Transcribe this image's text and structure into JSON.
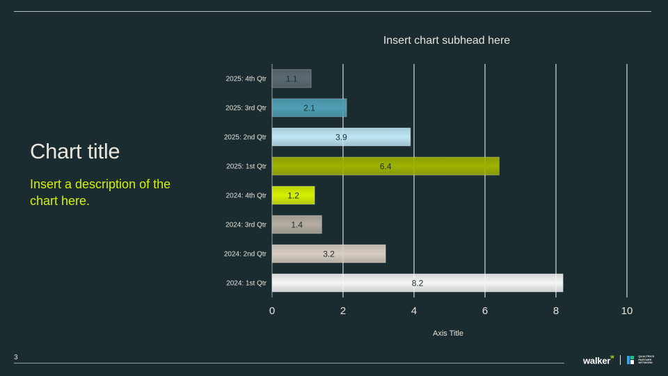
{
  "slide": {
    "title": "Chart title",
    "description": "Insert a description of the chart here.",
    "page_number": "3",
    "subhead": "Insert chart subhead here"
  },
  "brand": {
    "wordmark": "walker",
    "partner_text": "QUALTRICS PARTNER NETWORK",
    "colors": {
      "background": "#1a2c30",
      "accent": "#d6f000",
      "text": "#e8e4dc",
      "gridline": "#ffffff"
    }
  },
  "chart_data": {
    "type": "bar",
    "orientation": "horizontal",
    "subtitle": "Insert chart subhead here",
    "xlabel": "Axis Title",
    "ylabel": "",
    "xlim": [
      0,
      10
    ],
    "x_ticks": [
      0,
      2,
      4,
      6,
      8,
      10
    ],
    "grid": true,
    "legend": "none",
    "categories": [
      "2025: 4th Qtr",
      "2025: 3rd Qtr",
      "2025: 2nd Qtr",
      "2025: 1st Qtr",
      "2024: 4th Qtr",
      "2024: 3rd Qtr",
      "2024: 2nd Qtr",
      "2024: 1st Qtr"
    ],
    "values": [
      1.1,
      2.1,
      3.9,
      6.4,
      1.2,
      1.4,
      3.2,
      8.2
    ],
    "bar_colors": [
      "#5a6a70",
      "#4f9fb5",
      "#bfe6f5",
      "#9fb200",
      "#d6f000",
      "#b5ada0",
      "#d8cec2",
      "#f5f5f5"
    ],
    "label_colors": [
      "#1a2c30",
      "#1a2c30",
      "#1a2c30",
      "#1a2c30",
      "#1a2c30",
      "#1a2c30",
      "#1a2c30",
      "#1a2c30"
    ]
  }
}
